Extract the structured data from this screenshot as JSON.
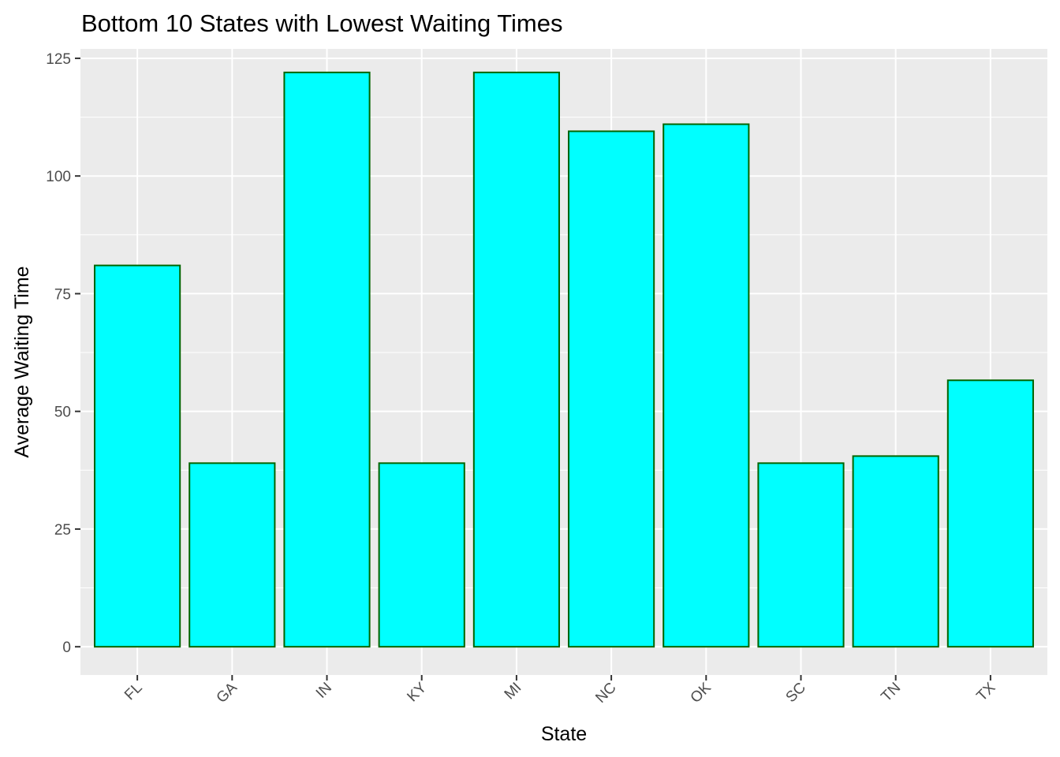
{
  "chart_data": {
    "type": "bar",
    "title": "Bottom 10 States with Lowest Waiting Times",
    "xlabel": "State",
    "ylabel": "Average Waiting Time",
    "categories": [
      "FL",
      "GA",
      "IN",
      "KY",
      "MI",
      "NC",
      "OK",
      "SC",
      "TN",
      "TX"
    ],
    "values": [
      81,
      39,
      122,
      39,
      122,
      109.5,
      111,
      39,
      40.5,
      56.6
    ],
    "ylim": [
      -6,
      127
    ],
    "yticks": [
      0,
      25,
      50,
      75,
      100,
      125
    ],
    "ytick_labels": [
      "0",
      "25",
      "50",
      "75",
      "100",
      "125"
    ],
    "grid": true,
    "x_tick_rotation_deg": 45,
    "colors": {
      "bar_fill": "#00FFFF",
      "bar_outline": "#006400",
      "panel_background": "#EBEBEB",
      "grid_line": "#FFFFFF",
      "tick_label": "#4D4D4D"
    }
  }
}
